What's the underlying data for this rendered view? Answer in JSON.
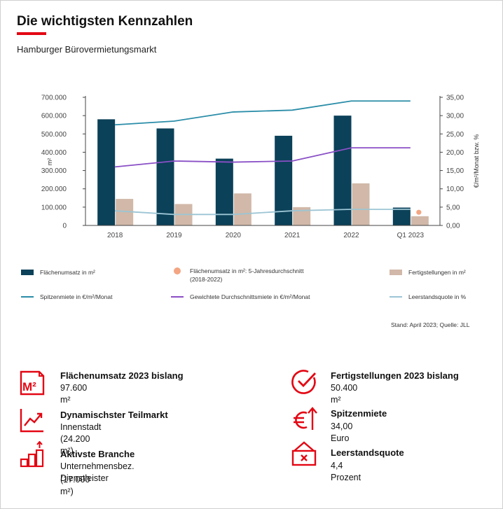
{
  "header": {
    "title": "Die wichtigsten Kennzahlen",
    "subtitle": "Hamburger Bürovermietungsmarkt"
  },
  "chart_data": {
    "type": "bar",
    "categories": [
      "2018",
      "2019",
      "2020",
      "2021",
      "2022",
      "Q1 2023"
    ],
    "ylabel": "m²",
    "ylim": [
      0,
      700000
    ],
    "yticks": [
      "0",
      "100.000",
      "200.000",
      "300.000",
      "400.000",
      "500.000",
      "600.000",
      "700.000"
    ],
    "y2label": "€/m²/Monat bzw. %",
    "y2lim": [
      0,
      35
    ],
    "y2ticks": [
      "0,00",
      "5,00",
      "10,00",
      "15,00",
      "20,00",
      "25,00",
      "30,00",
      "35,00"
    ],
    "legend_position": "bottom",
    "series": [
      {
        "name": "Flächenumsatz  in m²",
        "kind": "bar",
        "axis": "left",
        "color": "#0b4159",
        "values": [
          580000,
          530000,
          365000,
          490000,
          600000,
          97600
        ]
      },
      {
        "name": "Fertigstellungen  in m²",
        "kind": "bar",
        "axis": "left",
        "color": "#d1b8a8",
        "values": [
          145000,
          117000,
          175000,
          100000,
          230000,
          50400
        ]
      },
      {
        "name": "Flächenumsatz  in m²: 5-Jahresdurchschnitt (2018-2022)",
        "kind": "point",
        "axis": "left",
        "color": "#f4a582",
        "x": "Q1 2023",
        "value": 72000
      },
      {
        "name": "Spitzenmiete   in €/m²/Monat",
        "kind": "line",
        "axis": "right",
        "color": "#2a8da8",
        "values": [
          27.5,
          28.5,
          31.0,
          31.5,
          34.0,
          34.0
        ]
      },
      {
        "name": "Gewichtete Durchschnittsmiete   in €/m²/Monat",
        "kind": "line",
        "axis": "right",
        "color": "#8a4fc6",
        "values": [
          16.0,
          17.6,
          17.3,
          17.6,
          21.2,
          21.2
        ]
      },
      {
        "name": "Leerstandsquote   in %",
        "kind": "line",
        "axis": "right",
        "color": "#9cc5d4",
        "values": [
          4.0,
          3.0,
          3.0,
          4.0,
          4.4,
          4.4
        ]
      }
    ]
  },
  "legend_lines": {
    "avg_line2": "(2018-2022)"
  },
  "source": "Stand: April 2023; Quelle: JLL",
  "kpis": [
    {
      "label": "Flächenumsatz 2023 bislang",
      "value": "97.600 m²",
      "icon": "m2-icon"
    },
    {
      "label": "Fertigstellungen 2023 bislang",
      "value": "50.400 m²",
      "icon": "check-circle-icon"
    },
    {
      "label": "Dynamischster Teilmarkt",
      "value": "Innenstadt (24.200 m²)",
      "icon": "trend-chart-icon"
    },
    {
      "label": "Spitzenmiete",
      "value": "34,00 Euro",
      "icon": "euro-up-icon"
    },
    {
      "label": "Aktivste Branche",
      "value": "Unternehmensbez. Dienstleister",
      "value2": "(17.000 m²)",
      "icon": "bar-steps-icon"
    },
    {
      "label": "Leerstandsquote",
      "value": "4,4 Prozent",
      "icon": "vacancy-sign-icon"
    }
  ],
  "colors": {
    "accent": "#e30613"
  }
}
